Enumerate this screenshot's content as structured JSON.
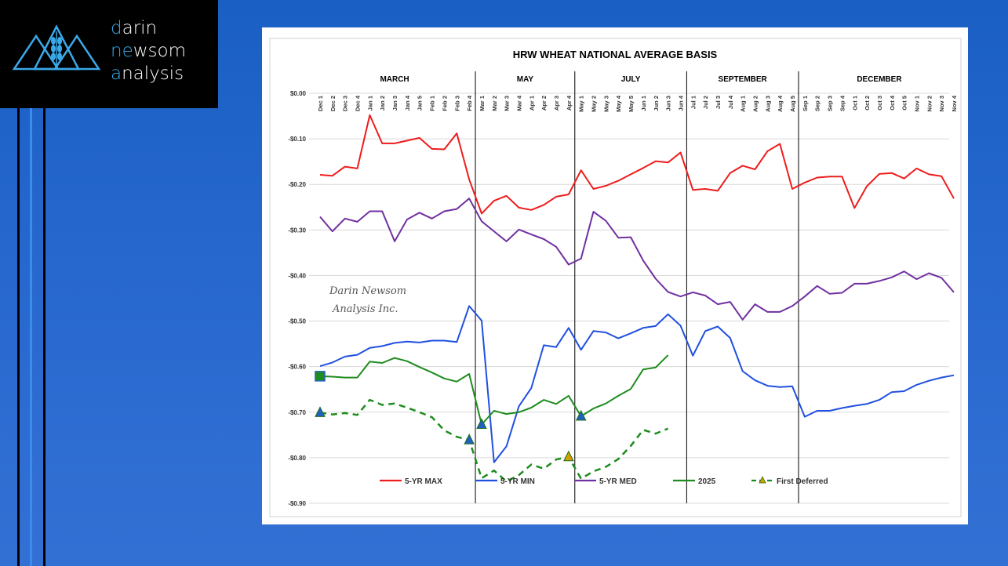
{
  "brand": {
    "line1": {
      "accent": "d",
      "rest": "arin"
    },
    "line2": {
      "accent": "ne",
      "mid": "w",
      "rest": "som"
    },
    "line3": {
      "accent": "a",
      "rest": "nalysis"
    },
    "accent_color": "#3aa9e8",
    "icon": "mountain-wheat-icon"
  },
  "chart_data": {
    "type": "line",
    "title": "HRW WHEAT NATIONAL AVERAGE BASIS",
    "watermark": [
      "Darin Newsom",
      "Analysis Inc."
    ],
    "contracts": [
      "MARCH",
      "MAY",
      "JULY",
      "SEPTEMBER",
      "DECEMBER"
    ],
    "x": [
      "Dec 1",
      "Dec 2",
      "Dec 3",
      "Dec 4",
      "Jan 1",
      "Jan 2",
      "Jan 3",
      "Jan 4",
      "Jan 5",
      "Feb 1",
      "Feb 2",
      "Feb 3",
      "Feb 4",
      "Mar 1",
      "Mar 2",
      "Mar 3",
      "Mar 4",
      "Apr 1",
      "Apr 2",
      "Apr 3",
      "Apr 4",
      "May 1",
      "May 2",
      "May 3",
      "May 4",
      "May 5",
      "Jun 1",
      "Jun 2",
      "Jun 3",
      "Jun 4",
      "Jul 1",
      "Jul 2",
      "Jul 3",
      "Jul 4",
      "Aug 1",
      "Aug 2",
      "Aug 3",
      "Aug 4",
      "Aug 5",
      "Sep 1",
      "Sep 2",
      "Sep 3",
      "Sep 4",
      "Oct 1",
      "Oct 2",
      "Oct 3",
      "Oct 4",
      "Oct 5",
      "Nov 1",
      "Nov 2",
      "Nov 3",
      "Nov 4"
    ],
    "ylim": [
      -0.9,
      0.0
    ],
    "yticks": [
      "$0.00",
      "-$0.10",
      "-$0.20",
      "-$0.30",
      "-$0.40",
      "-$0.50",
      "-$0.60",
      "-$0.70",
      "-$0.80",
      "-$0.90"
    ],
    "grid": true,
    "legend": "bottom",
    "series": [
      {
        "name": "5-YR MAX",
        "color": "#ee1c1c",
        "style": "solid",
        "values": [
          -0.179,
          -0.181,
          -0.161,
          -0.165,
          -0.048,
          -0.11,
          -0.11,
          -0.104,
          -0.098,
          -0.122,
          -0.123,
          -0.088,
          -0.189,
          -0.264,
          -0.236,
          -0.225,
          -0.251,
          -0.256,
          -0.245,
          -0.227,
          -0.222,
          -0.169,
          -0.21,
          -0.203,
          -0.192,
          -0.178,
          -0.164,
          -0.149,
          -0.152,
          -0.13,
          -0.212,
          -0.21,
          -0.214,
          -0.175,
          -0.159,
          -0.167,
          -0.127,
          -0.111,
          -0.21,
          -0.196,
          -0.185,
          -0.183,
          -0.183,
          -0.252,
          -0.204,
          -0.177,
          -0.175,
          -0.187,
          -0.165,
          -0.178,
          -0.182,
          -0.231
        ]
      },
      {
        "name": "5-YR MIN",
        "color": "#2050e0",
        "style": "solid",
        "values": [
          -0.599,
          -0.591,
          -0.578,
          -0.574,
          -0.559,
          -0.555,
          -0.548,
          -0.545,
          -0.547,
          -0.543,
          -0.543,
          -0.546,
          -0.467,
          -0.499,
          -0.81,
          -0.775,
          -0.687,
          -0.647,
          -0.553,
          -0.557,
          -0.515,
          -0.563,
          -0.522,
          -0.525,
          -0.538,
          -0.527,
          -0.515,
          -0.511,
          -0.485,
          -0.51,
          -0.576,
          -0.522,
          -0.512,
          -0.537,
          -0.61,
          -0.63,
          -0.642,
          -0.645,
          -0.643,
          -0.71,
          -0.697,
          -0.697,
          -0.691,
          -0.686,
          -0.682,
          -0.673,
          -0.656,
          -0.654,
          -0.64,
          -0.631,
          -0.624,
          -0.619
        ]
      },
      {
        "name": "5-YR MED",
        "color": "#7030a0",
        "style": "solid",
        "values": [
          -0.271,
          -0.303,
          -0.275,
          -0.282,
          -0.259,
          -0.259,
          -0.325,
          -0.277,
          -0.262,
          -0.275,
          -0.259,
          -0.254,
          -0.231,
          -0.281,
          -0.303,
          -0.325,
          -0.299,
          -0.31,
          -0.32,
          -0.337,
          -0.376,
          -0.363,
          -0.26,
          -0.28,
          -0.317,
          -0.316,
          -0.367,
          -0.407,
          -0.436,
          -0.446,
          -0.437,
          -0.444,
          -0.463,
          -0.458,
          -0.497,
          -0.463,
          -0.48,
          -0.48,
          -0.467,
          -0.446,
          -0.423,
          -0.44,
          -0.438,
          -0.418,
          -0.418,
          -0.412,
          -0.404,
          -0.391,
          -0.408,
          -0.395,
          -0.405,
          -0.437
        ]
      },
      {
        "name": "2025",
        "color": "#1e8c1e",
        "style": "solid",
        "values": [
          -0.621,
          -0.622,
          -0.624,
          -0.624,
          -0.589,
          -0.592,
          -0.581,
          -0.588,
          -0.601,
          -0.613,
          -0.626,
          -0.633,
          -0.616,
          -0.727,
          -0.697,
          -0.704,
          -0.7,
          -0.69,
          -0.673,
          -0.682,
          -0.664,
          -0.709,
          -0.692,
          -0.681,
          -0.664,
          -0.649,
          -0.606,
          -0.602,
          -0.575,
          null,
          null,
          null,
          null,
          null,
          null,
          null,
          null,
          null,
          null,
          null,
          null,
          null,
          null,
          null,
          null,
          null,
          null,
          null,
          null,
          null,
          null,
          null
        ]
      },
      {
        "name": "First Deferred",
        "color": "#1e8c1e",
        "style": "dashed",
        "values": [
          -0.701,
          -0.705,
          -0.702,
          -0.706,
          -0.673,
          -0.684,
          -0.681,
          -0.69,
          -0.7,
          -0.711,
          -0.74,
          -0.754,
          -0.761,
          -0.845,
          -0.828,
          -0.852,
          -0.838,
          -0.815,
          -0.824,
          -0.804,
          -0.798,
          -0.846,
          -0.83,
          -0.82,
          -0.803,
          -0.774,
          -0.739,
          -0.747,
          -0.736,
          null,
          null,
          null,
          null,
          null,
          null,
          null,
          null,
          null,
          null,
          null,
          null,
          null,
          null,
          null,
          null,
          null,
          null,
          null,
          null,
          null,
          null,
          null
        ]
      }
    ],
    "markers": [
      {
        "series": "2025",
        "x": "Dec 1",
        "y": -0.621,
        "shape": "square",
        "color": "#2060c0"
      },
      {
        "series": "2025",
        "x": "Mar 1",
        "y": -0.727,
        "shape": "triangle",
        "color": "#2060c0"
      },
      {
        "series": "2025",
        "x": "May 1",
        "y": -0.709,
        "shape": "triangle",
        "color": "#2060c0"
      },
      {
        "series": "First Deferred",
        "x": "Dec 1",
        "y": -0.701,
        "shape": "triangle",
        "color": "#2060c0"
      },
      {
        "series": "First Deferred",
        "x": "Feb 4",
        "y": -0.761,
        "shape": "triangle",
        "color": "#2060c0"
      },
      {
        "series": "First Deferred",
        "x": "Apr 4",
        "y": -0.798,
        "shape": "triangle",
        "color": "#d4a000"
      }
    ]
  }
}
